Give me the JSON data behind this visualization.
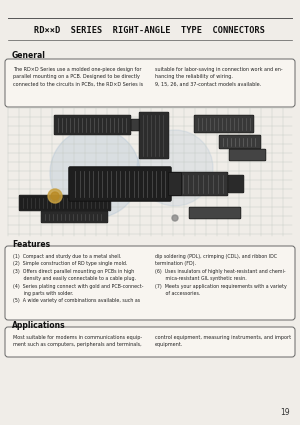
{
  "title": "RD××D  SERIES  RIGHT-ANGLE  TYPE  CONNECTORS",
  "bg_color": "#f0ede8",
  "page_number": "19",
  "general_title": "General",
  "general_text_left": "The RD×D Series use a molded one-piece design for\nparallel mounting on a PCB. Designed to be directly\nconnected to the circuits in PCBs, the RD×D Series is",
  "general_text_right": "suitable for labor-saving in connection work and en-\nhancing the reliability of wiring.\n9, 15, 26, and 37-contact models available.",
  "features_title": "Features",
  "features_left": "(1)  Compact and sturdy due to a metal shell.\n(2)  Simple construction of RD type single mold.\n(3)  Offers direct parallel mounting on PCBs in high\n       density and easily connectable to a cable plug.\n(4)  Series plating connect with gold and PCB-connect-\n       ing parts with solder.\n(5)  A wide variety of combinations available, such as",
  "features_right": "dip soldering (PDL), crimping (CDL), and ribbon IDC\ntermination (FD).\n(6)  Uses insulators of highly heat-resistant and chemi-\n       mica-resistant GIL synthetic resin.\n(7)  Meets your application requirements with a variety\n       of accessories.",
  "applications_title": "Applications",
  "applications_text_left": "Most suitable for modems in communications equip-\nment such as computers, peripherals and terminals,",
  "applications_text_right": "control equipment, measuring instruments, and import\nequipment.",
  "grid_color": "#c0c8c0",
  "watermark_color": "#a0b8d0"
}
